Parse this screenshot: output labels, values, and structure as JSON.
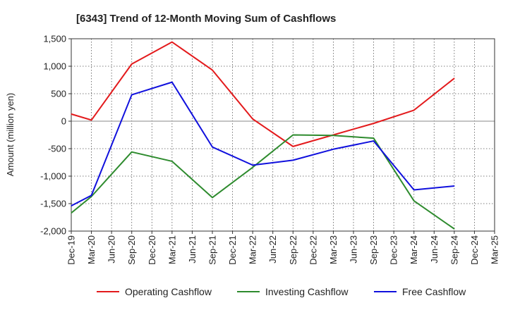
{
  "chart_data": {
    "type": "line",
    "title": "[6343]  Trend of 12-Month Moving Sum of Cashflows",
    "xlabel": "",
    "ylabel": "Amount (million yen)",
    "ylim": [
      -2000,
      1500
    ],
    "yticks": [
      1500,
      1000,
      500,
      0,
      -500,
      -1000,
      -1500,
      -2000
    ],
    "ytick_labels": [
      "1,500",
      "1,000",
      "500",
      "0",
      "-500",
      "-1,000",
      "-1,500",
      "-2,000"
    ],
    "categories": [
      "Dec-19",
      "Mar-20",
      "Jun-20",
      "Sep-20",
      "Dec-20",
      "Mar-21",
      "Jun-21",
      "Sep-21",
      "Dec-21",
      "Mar-22",
      "Jun-22",
      "Sep-22",
      "Dec-22",
      "Mar-23",
      "Jun-23",
      "Sep-23",
      "Dec-23",
      "Mar-24",
      "Jun-24",
      "Sep-24",
      "Dec-24",
      "Mar-25"
    ],
    "grid": true,
    "legend_position": "bottom",
    "series": [
      {
        "name": "Operating Cashflow",
        "color": "#e31a1c",
        "values": [
          130,
          20,
          null,
          1040,
          null,
          1440,
          null,
          930,
          null,
          40,
          null,
          -460,
          null,
          -250,
          null,
          -40,
          null,
          200,
          null,
          780,
          null,
          null
        ]
      },
      {
        "name": "Investing Cashflow",
        "color": "#2e8b2e",
        "values": [
          -1670,
          -1370,
          null,
          -560,
          null,
          -730,
          null,
          -1390,
          null,
          -840,
          null,
          -250,
          null,
          -260,
          null,
          -310,
          null,
          -1450,
          null,
          -1960,
          null,
          null
        ]
      },
      {
        "name": "Free Cashflow",
        "color": "#1010dd",
        "values": [
          -1540,
          -1350,
          null,
          480,
          null,
          710,
          null,
          -470,
          null,
          -800,
          null,
          -710,
          null,
          -510,
          null,
          -360,
          null,
          -1250,
          null,
          -1180,
          null,
          null
        ]
      }
    ]
  }
}
